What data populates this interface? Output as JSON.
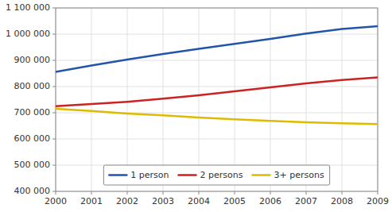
{
  "chart_data": {
    "type": "line",
    "x": [
      2000,
      2001,
      2002,
      2003,
      2004,
      2005,
      2006,
      2007,
      2008,
      2009
    ],
    "xlim": [
      2000,
      2009
    ],
    "xticks": [
      2000,
      2001,
      2002,
      2003,
      2004,
      2005,
      2006,
      2007,
      2008,
      2009
    ],
    "series": [
      {
        "name": "1 person",
        "color": "#2255AA",
        "values": [
          856000,
          880000,
          903000,
          924000,
          944000,
          963000,
          982000,
          1002000,
          1020000,
          1030000
        ]
      },
      {
        "name": "2 persons",
        "color": "#CC2222",
        "values": [
          725000,
          733000,
          742000,
          754000,
          767000,
          782000,
          797000,
          812000,
          825000,
          835000
        ]
      },
      {
        "name": "3+ persons",
        "color": "#DDBB00",
        "values": [
          715000,
          707000,
          697000,
          690000,
          682000,
          675000,
          669000,
          664000,
          660000,
          657000
        ]
      }
    ],
    "ylim": [
      400000,
      1100000
    ],
    "yticks": [
      {
        "value": 400000,
        "label": "400 000"
      },
      {
        "value": 500000,
        "label": "500 000"
      },
      {
        "value": 600000,
        "label": "600 000"
      },
      {
        "value": 700000,
        "label": "700 000"
      },
      {
        "value": 800000,
        "label": "800 000"
      },
      {
        "value": 900000,
        "label": "900 000"
      },
      {
        "value": 1000000,
        "label": "1 000 000"
      },
      {
        "value": 1100000,
        "label": "1 100 000"
      }
    ],
    "grid": true,
    "legend": "bottom"
  }
}
